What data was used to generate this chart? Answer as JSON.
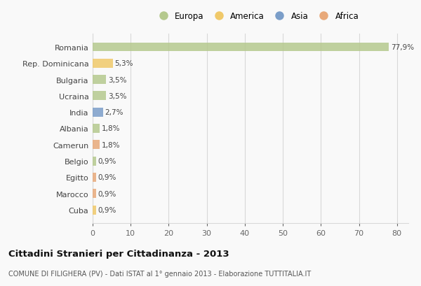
{
  "countries": [
    "Romania",
    "Rep. Dominicana",
    "Bulgaria",
    "Ucraina",
    "India",
    "Albania",
    "Camerun",
    "Belgio",
    "Egitto",
    "Marocco",
    "Cuba"
  ],
  "values": [
    77.9,
    5.3,
    3.5,
    3.5,
    2.7,
    1.8,
    1.8,
    0.9,
    0.9,
    0.9,
    0.9
  ],
  "labels": [
    "77,9%",
    "5,3%",
    "3,5%",
    "3,5%",
    "2,7%",
    "1,8%",
    "1,8%",
    "0,9%",
    "0,9%",
    "0,9%",
    "0,9%"
  ],
  "colors": [
    "#b5c98e",
    "#f0c96a",
    "#b5c98e",
    "#b5c98e",
    "#7b9ec9",
    "#b5c98e",
    "#e8a97a",
    "#b5c98e",
    "#e8a97a",
    "#e8a97a",
    "#f0c96a"
  ],
  "legend_labels": [
    "Europa",
    "America",
    "Asia",
    "Africa"
  ],
  "legend_colors": [
    "#b5c98e",
    "#f0c96a",
    "#7b9ec9",
    "#e8a97a"
  ],
  "xlim": [
    0,
    83
  ],
  "xticks": [
    0,
    10,
    20,
    30,
    40,
    50,
    60,
    70,
    80
  ],
  "title": "Cittadini Stranieri per Cittadinanza - 2013",
  "subtitle": "COMUNE DI FILIGHERA (PV) - Dati ISTAT al 1° gennaio 2013 - Elaborazione TUTTITALIA.IT",
  "bg_color": "#f9f9f9",
  "bar_height": 0.55,
  "grid_color": "#d8d8d8"
}
